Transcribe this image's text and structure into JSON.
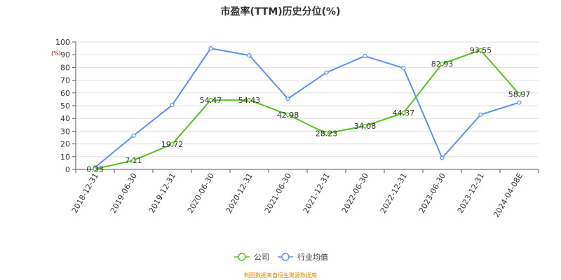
{
  "chart_data": {
    "type": "line",
    "title": "市盈率(TTM)历史分位(%)",
    "unit": "(%)",
    "categories": [
      "2018-12-31",
      "2019-06-30",
      "2019-12-31",
      "2020-06-30",
      "2020-12-31",
      "2021-06-30",
      "2021-12-31",
      "2022-06-30",
      "2022-12-31",
      "2023-06-30",
      "2023-12-31",
      "2024-04-08E"
    ],
    "ylim": [
      0,
      100
    ],
    "yticks": [
      0,
      10,
      20,
      30,
      40,
      50,
      60,
      70,
      80,
      90,
      100
    ],
    "grid": true,
    "legend_position": "bottom",
    "series": [
      {
        "name": "公司",
        "color": "#52c41a",
        "values": [
          0.33,
          7.11,
          19.72,
          54.47,
          54.43,
          42.98,
          28.23,
          34.08,
          44.37,
          82.93,
          93.55,
          58.97
        ],
        "labels": [
          "0.33",
          "7.11",
          "19.72",
          "54.47",
          "54.43",
          "42.98",
          "28.23",
          "34.08",
          "44.37",
          "82.93",
          "93.55",
          "58.97"
        ]
      },
      {
        "name": "行业均值",
        "color": "#5b8ff9",
        "values": [
          1.5,
          26.5,
          50.5,
          95,
          89.5,
          55.5,
          76,
          89,
          79.5,
          9,
          43,
          52.5
        ]
      }
    ]
  },
  "source_note": "制图数据来自恒生聚源数据库"
}
